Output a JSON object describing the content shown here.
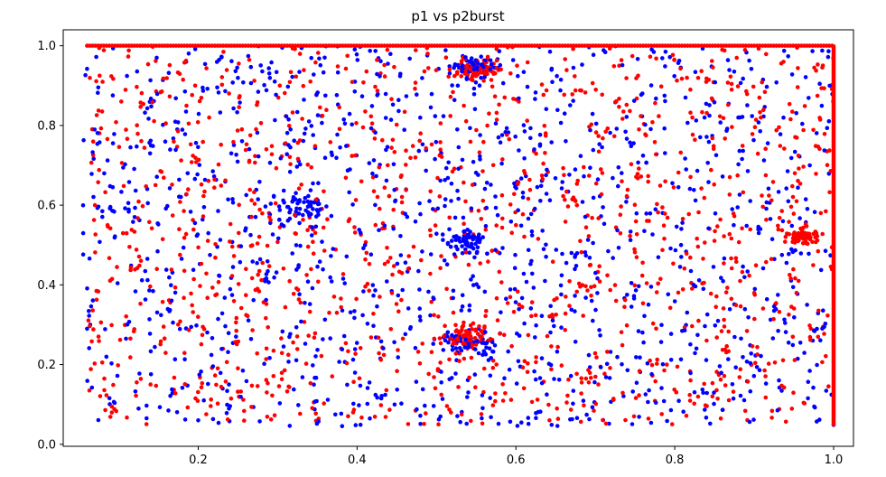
{
  "chart_data": {
    "type": "scatter",
    "title": "p1 vs p2burst",
    "xlabel": "",
    "ylabel": "",
    "xlim": [
      0.03,
      1.025
    ],
    "ylim": [
      -0.005,
      1.04
    ],
    "x_ticks": [
      0.2,
      0.4,
      0.6,
      0.8,
      1.0
    ],
    "x_tick_labels": [
      "0.2",
      "0.4",
      "0.6",
      "0.8",
      "1.0"
    ],
    "y_ticks": [
      0.0,
      0.2,
      0.4,
      0.6,
      0.8,
      1.0
    ],
    "y_tick_labels": [
      "0.0",
      "0.2",
      "0.4",
      "0.6",
      "0.8",
      "1.0"
    ],
    "grid": false,
    "colors": {
      "series_a": "#0000ff",
      "series_b": "#ff0000"
    },
    "series": [
      {
        "name": "blue",
        "color": "#0000ff",
        "x_range": [
          0.055,
          1.0
        ],
        "y_range": [
          0.045,
          1.0
        ],
        "approx_points": 1500,
        "description_note": "uniform cloud",
        "clusters": [
          {
            "x": 0.55,
            "y": 0.95,
            "spread": 0.03
          },
          {
            "x": 0.54,
            "y": 0.51,
            "spread": 0.03
          },
          {
            "x": 0.54,
            "y": 0.25,
            "spread": 0.04
          },
          {
            "x": 0.33,
            "y": 0.6,
            "spread": 0.04
          }
        ],
        "sample_points": [
          [
            0.06,
            0.29
          ],
          [
            0.12,
            0.57
          ],
          [
            0.32,
            0.62
          ],
          [
            0.55,
            0.94
          ],
          [
            0.67,
            0.48
          ],
          [
            0.88,
            0.82
          ],
          [
            0.97,
            0.7
          ],
          [
            0.54,
            0.13
          ],
          [
            0.2,
            0.06
          ],
          [
            0.41,
            0.5
          ]
        ]
      },
      {
        "name": "red",
        "color": "#ff0000",
        "x_range": [
          0.06,
          1.0
        ],
        "y_range": [
          0.05,
          1.0
        ],
        "approx_points": 1500,
        "saturated_top_row": {
          "y": 1.0,
          "x_from": 0.06,
          "x_to": 1.0
        },
        "saturated_right_column": {
          "x": 1.0,
          "y_from": 0.05,
          "y_to": 1.0
        },
        "clusters": [
          {
            "x": 0.55,
            "y": 0.94,
            "spread": 0.03
          },
          {
            "x": 0.96,
            "y": 0.52,
            "spread": 0.02
          },
          {
            "x": 0.54,
            "y": 0.27,
            "spread": 0.04
          }
        ],
        "sample_points": [
          [
            0.07,
            0.6
          ],
          [
            0.14,
            0.15
          ],
          [
            0.26,
            0.44
          ],
          [
            0.48,
            0.78
          ],
          [
            0.6,
            0.55
          ],
          [
            0.79,
            0.2
          ],
          [
            0.96,
            0.52
          ],
          [
            0.73,
            0.95
          ],
          [
            0.38,
            0.24
          ],
          [
            0.9,
            0.38
          ]
        ]
      }
    ]
  }
}
